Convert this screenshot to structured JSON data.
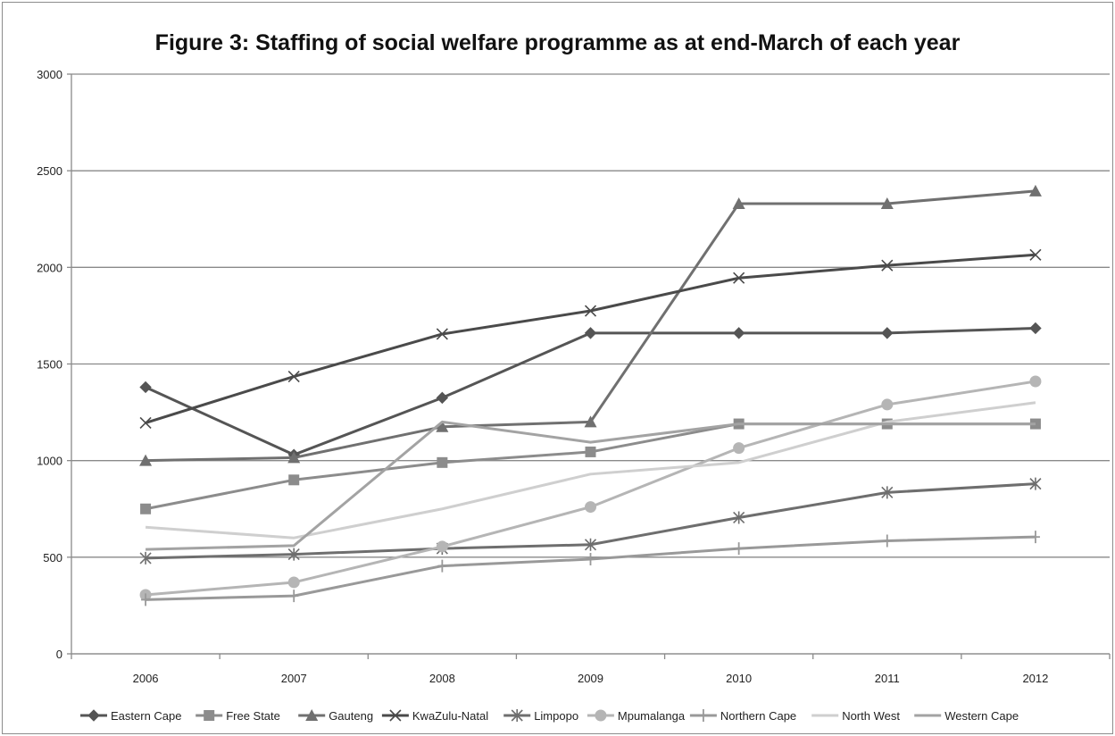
{
  "chart_data": {
    "type": "line",
    "title": "Figure 3: Staffing of social welfare programme as at end-March of each year",
    "xlabel": "",
    "ylabel": "",
    "categories": [
      "2006",
      "2007",
      "2008",
      "2009",
      "2010",
      "2011",
      "2012"
    ],
    "ylim": [
      0,
      3000
    ],
    "yticks": [
      "0",
      "500",
      "1000",
      "1500",
      "2000",
      "2500",
      "3000"
    ],
    "grid": true,
    "legend_position": "bottom",
    "series": [
      {
        "name": "Eastern Cape",
        "values": [
          1380,
          1030,
          1325,
          1660,
          1660,
          1660,
          1685
        ],
        "color": "#555555",
        "marker": "diamond",
        "width": 3
      },
      {
        "name": "Free State",
        "values": [
          750,
          900,
          990,
          1045,
          1190,
          1190,
          1190
        ],
        "color": "#8c8c8c",
        "marker": "square",
        "width": 3
      },
      {
        "name": "Gauteng",
        "values": [
          1000,
          1015,
          1175,
          1200,
          2330,
          2330,
          2395
        ],
        "color": "#707070",
        "marker": "triangle",
        "width": 3
      },
      {
        "name": "KwaZulu-Natal",
        "values": [
          1195,
          1435,
          1655,
          1775,
          1945,
          2010,
          2065
        ],
        "color": "#4a4a4a",
        "marker": "x",
        "width": 3
      },
      {
        "name": "Limpopo",
        "values": [
          495,
          515,
          545,
          565,
          705,
          835,
          880
        ],
        "color": "#6e6e6e",
        "marker": "star",
        "width": 3
      },
      {
        "name": "Mpumalanga",
        "values": [
          305,
          370,
          555,
          760,
          1065,
          1290,
          1410
        ],
        "color": "#b5b5b5",
        "marker": "circle",
        "width": 3
      },
      {
        "name": "Northern Cape",
        "values": [
          280,
          300,
          455,
          490,
          545,
          585,
          605
        ],
        "color": "#999999",
        "marker": "plus",
        "width": 3
      },
      {
        "name": "North West",
        "values": [
          655,
          600,
          750,
          930,
          990,
          1200,
          1300
        ],
        "color": "#cfcfcf",
        "marker": "none",
        "width": 3
      },
      {
        "name": "Western Cape",
        "values": [
          540,
          560,
          1200,
          1095,
          1190,
          1190,
          1190
        ],
        "color": "#a3a3a3",
        "marker": "none",
        "width": 3
      }
    ]
  }
}
